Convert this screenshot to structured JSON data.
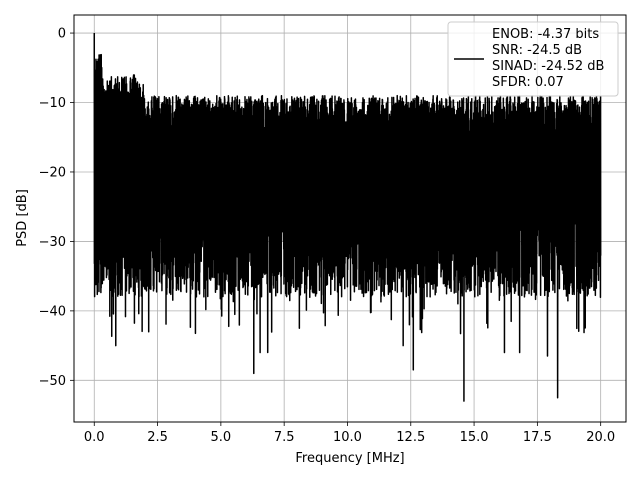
{
  "chart_data": {
    "type": "line",
    "title": "",
    "xlabel": "Frequency [MHz]",
    "ylabel": "PSD [dB]",
    "xlim": [
      -0.8,
      21.0
    ],
    "ylim": [
      -56,
      2.6
    ],
    "xticks": [
      0.0,
      2.5,
      5.0,
      7.5,
      10.0,
      12.5,
      15.0,
      17.5,
      20.0
    ],
    "xtick_labels": [
      "0.0",
      "2.5",
      "5.0",
      "7.5",
      "10.0",
      "12.5",
      "15.0",
      "17.5",
      "20.0"
    ],
    "yticks": [
      0,
      -10,
      -20,
      -30,
      -40,
      -50
    ],
    "ytick_labels": [
      "0",
      "−10",
      "−20",
      "−30",
      "−40",
      "−50"
    ],
    "grid": true,
    "legend_position": "top-right",
    "series": [
      {
        "color": "#000000",
        "noise_floor_db": -20,
        "peak_top_db": -7,
        "deep_notches": [
          {
            "x": 0.85,
            "y": -45.0
          },
          {
            "x": 2.15,
            "y": -43.0
          },
          {
            "x": 5.55,
            "y": -40.5
          },
          {
            "x": 6.3,
            "y": -49.0
          },
          {
            "x": 6.55,
            "y": -46.0
          },
          {
            "x": 6.85,
            "y": -46.0
          },
          {
            "x": 8.1,
            "y": -42.5
          },
          {
            "x": 12.2,
            "y": -45.0
          },
          {
            "x": 12.6,
            "y": -48.5
          },
          {
            "x": 14.6,
            "y": -53.0
          },
          {
            "x": 16.2,
            "y": -46.0
          },
          {
            "x": 16.8,
            "y": -46.0
          },
          {
            "x": 17.9,
            "y": -46.5
          },
          {
            "x": 18.3,
            "y": -52.5
          }
        ]
      }
    ],
    "legend": [
      "ENOB: -4.37 bits",
      "SNR: -24.5 dB",
      "SINAD: -24.52 dB",
      "SFDR: 0.07"
    ]
  }
}
